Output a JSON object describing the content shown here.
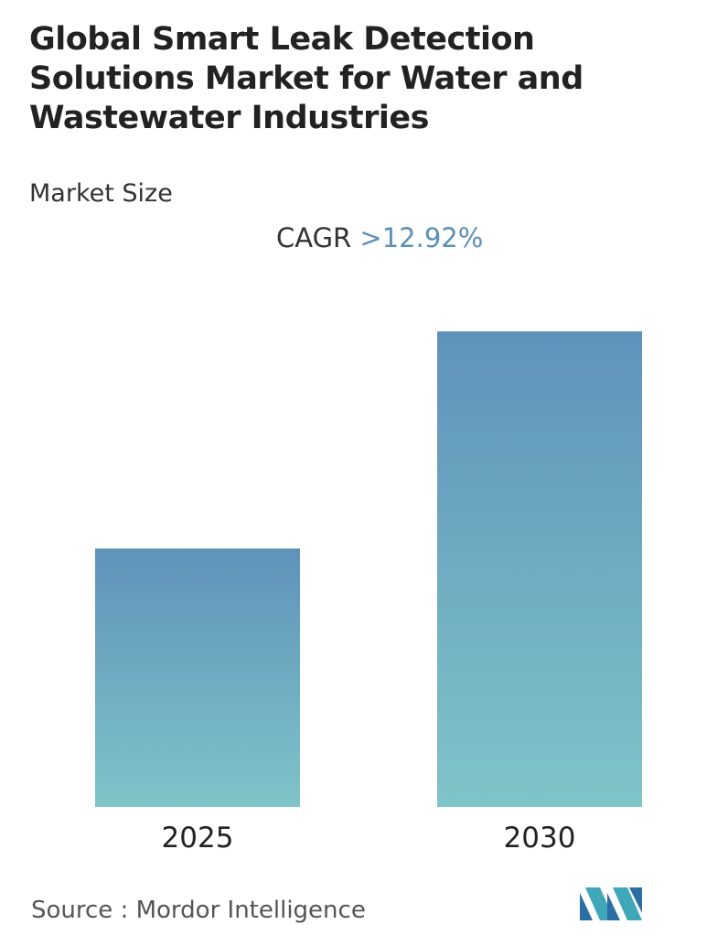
{
  "title": "Global Smart Leak Detection Solutions Market for Water and Wastewater Industries",
  "subtitle": "Market Size",
  "cagr": {
    "label": "CAGR",
    "value": ">12.92%"
  },
  "source": {
    "label": "Source :",
    "name": "Mordor Intelligence"
  },
  "logo": {
    "icon": "mordor-intelligence-logo-icon"
  },
  "colors": {
    "bar_top": "#5f92ba",
    "bar_bottom": "#7fc4c9",
    "accent": "#5b8fb8"
  },
  "chart_data": {
    "type": "bar",
    "title": "Global Smart Leak Detection Solutions Market for Water and Wastewater Industries",
    "subtitle": "Market Size",
    "categories": [
      "2025",
      "2030"
    ],
    "values": [
      1.0,
      1.84
    ],
    "value_unit": "relative market size (2025 = 1.0), no absolute values shown",
    "ylim": [
      0,
      2.0
    ],
    "xlabel": "",
    "ylabel": "",
    "grid": false,
    "annotation": "CAGR >12.92%"
  }
}
